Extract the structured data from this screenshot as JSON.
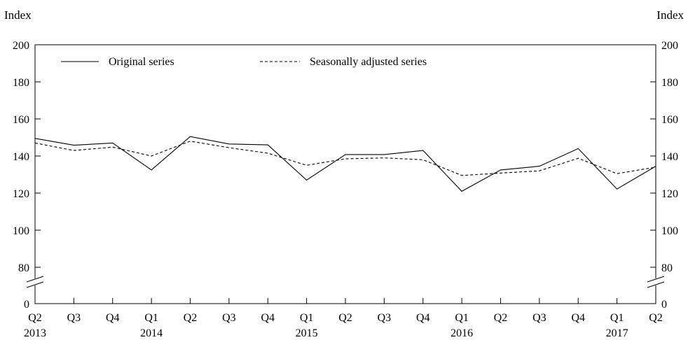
{
  "chart_data": {
    "type": "line",
    "y_unit_left": "Index",
    "y_unit_right": "Index",
    "categories": [
      "Q2",
      "Q3",
      "Q4",
      "Q1",
      "Q2",
      "Q3",
      "Q4",
      "Q1",
      "Q2",
      "Q3",
      "Q4",
      "Q1",
      "Q2",
      "Q3",
      "Q4",
      "Q1",
      "Q2"
    ],
    "years": [
      {
        "index": 0,
        "label": "2013"
      },
      {
        "index": 3,
        "label": "2014"
      },
      {
        "index": 7,
        "label": "2015"
      },
      {
        "index": 11,
        "label": "2016"
      },
      {
        "index": 15,
        "label": "2017"
      }
    ],
    "yticks": [
      0,
      80,
      100,
      120,
      140,
      160,
      180,
      200
    ],
    "ylim": [
      70,
      200
    ],
    "axis_break": true,
    "legend_position": "top-left",
    "series": [
      {
        "name": "Original series",
        "style": "solid",
        "values": [
          149.5,
          145.8,
          147.0,
          132.5,
          150.5,
          146.5,
          146.0,
          127.0,
          140.8,
          140.8,
          143.0,
          121.0,
          132.5,
          134.5,
          144.0,
          122.2,
          134.5
        ]
      },
      {
        "name": "Seasonally adjusted series",
        "style": "dashed",
        "values": [
          147.0,
          143.0,
          144.8,
          140.0,
          148.0,
          144.5,
          141.5,
          135.0,
          138.5,
          139.0,
          138.0,
          129.5,
          130.8,
          132.0,
          138.8,
          130.5,
          134.0
        ]
      }
    ]
  }
}
